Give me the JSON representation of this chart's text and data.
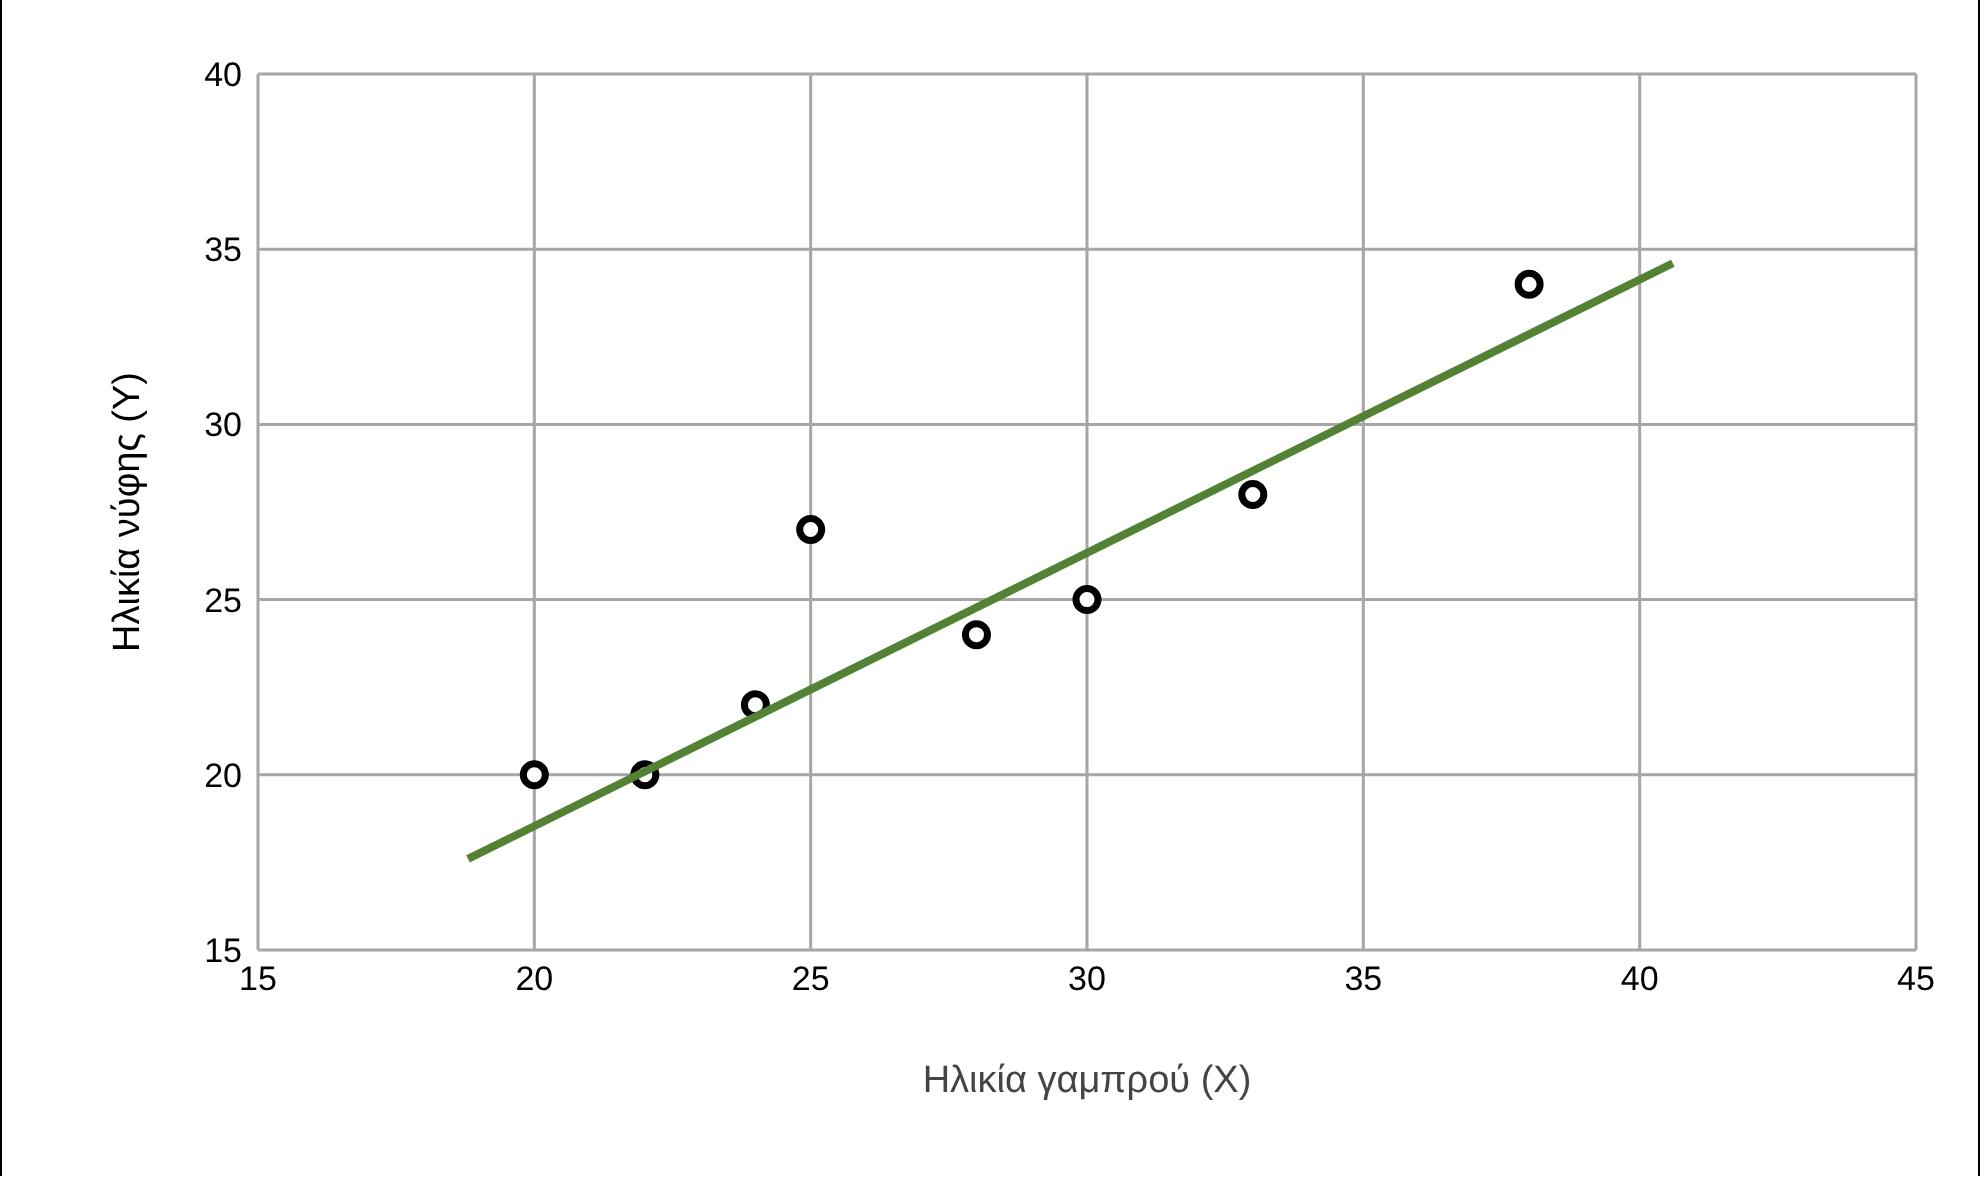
{
  "chart_data": {
    "type": "scatter",
    "xlabel": "Ηλικία γαμπρού (Χ)",
    "ylabel": "Ηλικία νύφης (Υ)",
    "xlim": [
      15,
      45
    ],
    "xticks": [
      15,
      20,
      25,
      30,
      35,
      40,
      45
    ],
    "ylim": [
      15,
      40
    ],
    "yticks": [
      15,
      20,
      25,
      30,
      35,
      40
    ],
    "grid": true,
    "legend": false,
    "series": [
      {
        "type": "scatter",
        "x": [
          20,
          22,
          24,
          25,
          28,
          30,
          33,
          38
        ],
        "values": [
          20,
          20,
          22,
          27,
          24,
          25,
          28,
          34
        ],
        "color": "#000000",
        "marker": "circle"
      },
      {
        "type": "line",
        "x": [
          18.8,
          40.6
        ],
        "values": [
          17.6,
          34.6
        ],
        "color": "#548235",
        "marker": "none"
      }
    ]
  }
}
